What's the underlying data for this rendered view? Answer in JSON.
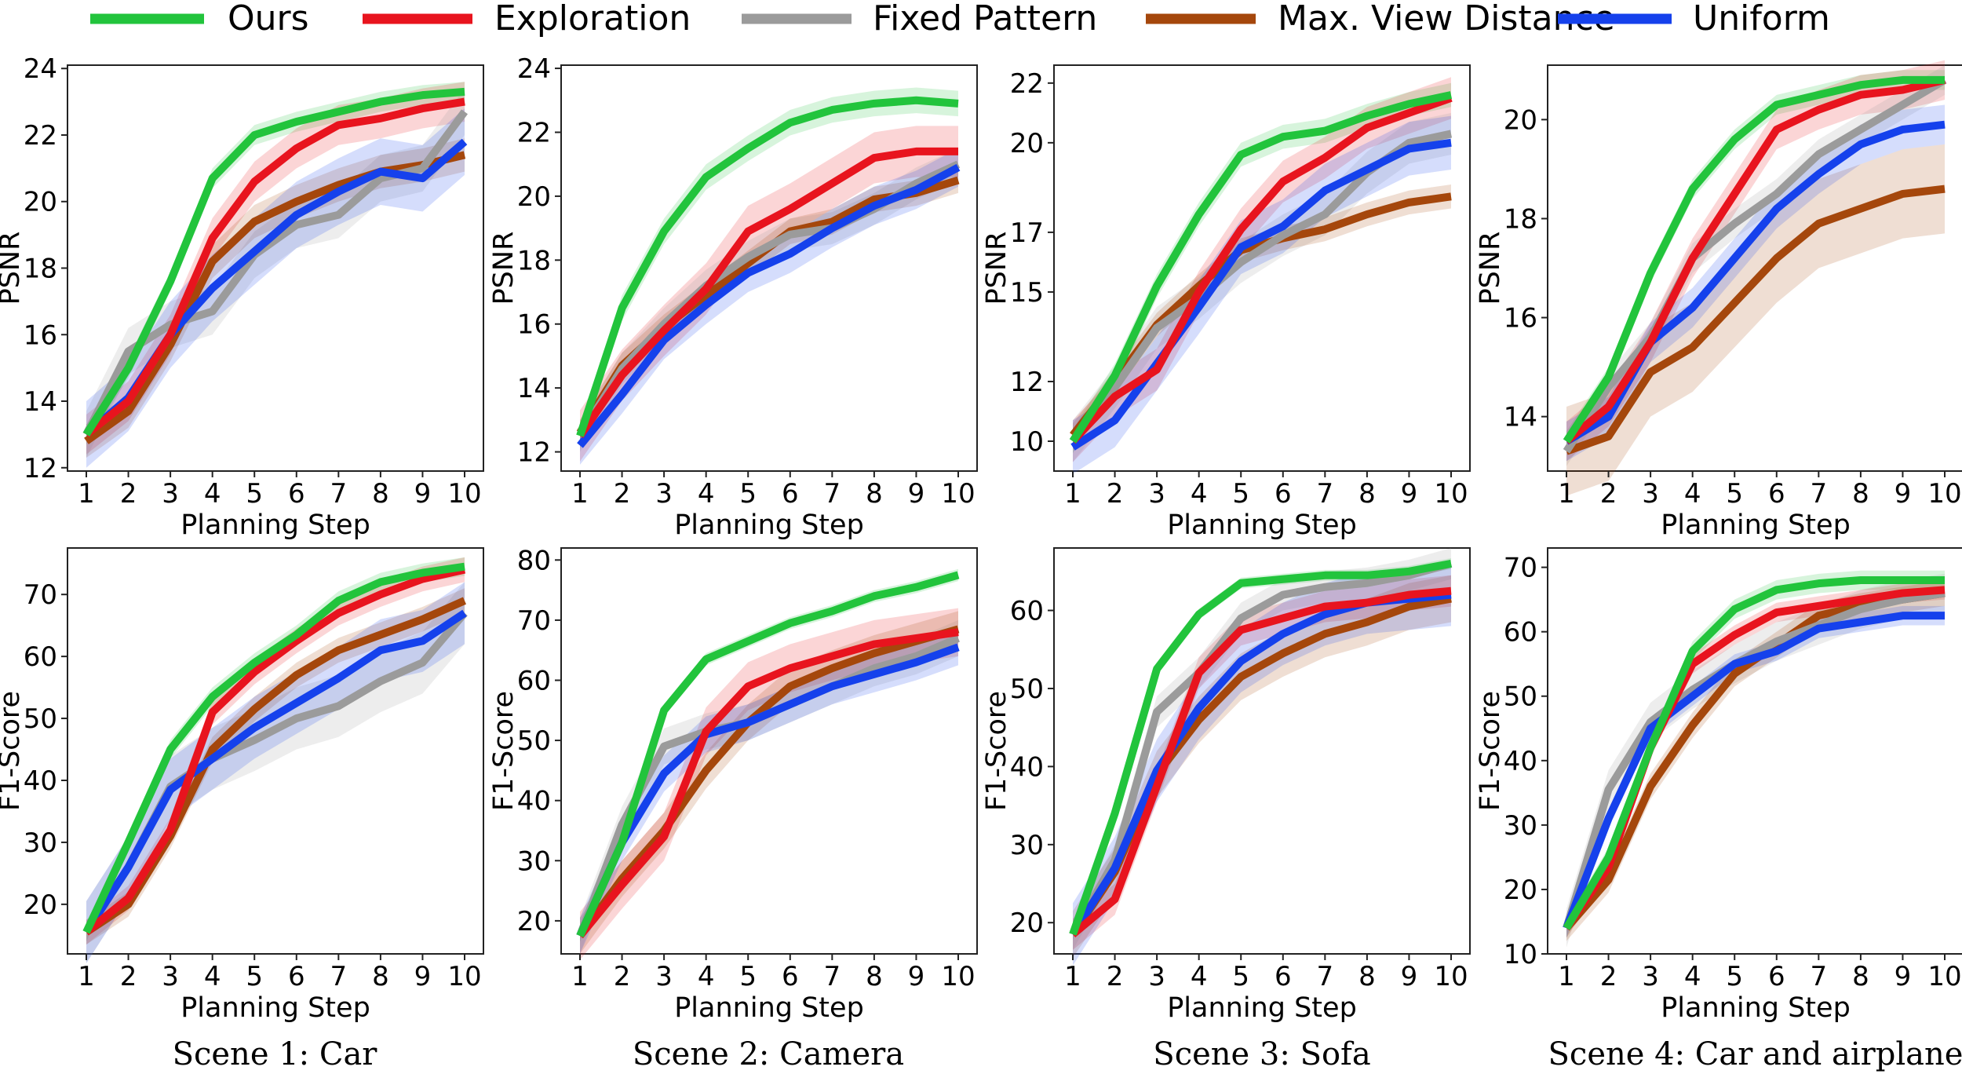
{
  "legend": [
    {
      "key": "ours",
      "label": "Ours",
      "color": "#22c43c"
    },
    {
      "key": "exploration",
      "label": "Exploration",
      "color": "#e8141e"
    },
    {
      "key": "fixed",
      "label": "Fixed Pattern",
      "color": "#9b9b9b"
    },
    {
      "key": "maxview",
      "label": "Max. View Distance",
      "color": "#a5470c"
    },
    {
      "key": "uniform",
      "label": "Uniform",
      "color": "#1541ec"
    }
  ],
  "captions": [
    "Scene 1: Car",
    "Scene 2: Camera",
    "Scene 3: Sofa",
    "Scene 4: Car and airplane"
  ],
  "chart_data": [
    {
      "id": "s1-psnr",
      "type": "line",
      "xlabel": "Planning Step",
      "ylabel": "PSNR",
      "ylim": [
        11.9,
        24.1
      ],
      "yticks": [
        12,
        14,
        16,
        18,
        20,
        22,
        24
      ],
      "x": [
        1,
        2,
        3,
        4,
        5,
        6,
        7,
        8,
        9,
        10
      ],
      "series": [
        {
          "key": "ours",
          "values": [
            13.0,
            15.0,
            17.6,
            20.7,
            22.0,
            22.4,
            22.7,
            23.0,
            23.2,
            23.3
          ],
          "band": 0.3
        },
        {
          "key": "exploration",
          "values": [
            13.0,
            14.0,
            16.0,
            18.9,
            20.6,
            21.6,
            22.3,
            22.5,
            22.8,
            23.0
          ],
          "band": 0.6
        },
        {
          "key": "fixed",
          "values": [
            13.0,
            15.5,
            16.3,
            16.7,
            18.4,
            19.3,
            19.6,
            20.7,
            21.0,
            22.7
          ],
          "band": 0.7
        },
        {
          "key": "maxview",
          "values": [
            12.8,
            13.7,
            15.7,
            18.2,
            19.4,
            20.0,
            20.5,
            20.9,
            21.1,
            21.4
          ],
          "band": 0.5
        },
        {
          "key": "uniform",
          "values": [
            13.0,
            14.1,
            16.0,
            17.4,
            18.5,
            19.6,
            20.3,
            20.9,
            20.7,
            21.8
          ],
          "band": 1.0
        }
      ]
    },
    {
      "id": "s2-psnr",
      "type": "line",
      "xlabel": "Planning Step",
      "ylabel": "PSNR",
      "ylim": [
        11.4,
        24.1
      ],
      "yticks": [
        12,
        14,
        16,
        18,
        20,
        22,
        24
      ],
      "x": [
        1,
        2,
        3,
        4,
        5,
        6,
        7,
        8,
        9,
        10
      ],
      "series": [
        {
          "key": "ours",
          "values": [
            12.5,
            16.5,
            18.9,
            20.6,
            21.5,
            22.3,
            22.7,
            22.9,
            23.0,
            22.9
          ],
          "band": 0.4
        },
        {
          "key": "exploration",
          "values": [
            12.5,
            14.4,
            15.8,
            17.1,
            18.9,
            19.6,
            20.4,
            21.2,
            21.4,
            21.4
          ],
          "band": 0.8
        },
        {
          "key": "fixed",
          "values": [
            12.5,
            14.6,
            16.0,
            17.2,
            18.1,
            18.8,
            19.0,
            19.6,
            20.4,
            21.0
          ],
          "band": 0.5
        },
        {
          "key": "maxview",
          "values": [
            12.6,
            14.7,
            15.9,
            16.9,
            17.9,
            18.9,
            19.2,
            19.9,
            20.1,
            20.5
          ],
          "band": 0.4
        },
        {
          "key": "uniform",
          "values": [
            12.2,
            13.8,
            15.5,
            16.6,
            17.6,
            18.2,
            19.0,
            19.7,
            20.2,
            20.9
          ],
          "band": 0.6
        }
      ]
    },
    {
      "id": "s3-psnr",
      "type": "line",
      "xlabel": "Planning Step",
      "ylabel": "PSNR",
      "ylim": [
        9.0,
        22.6
      ],
      "yticks": [
        10,
        12,
        15,
        17,
        20,
        22
      ],
      "yticklabels": [
        "10",
        "12",
        "15",
        "17",
        "20",
        "22"
      ],
      "x": [
        1,
        2,
        3,
        4,
        5,
        6,
        7,
        8,
        9,
        10
      ],
      "series": [
        {
          "key": "ours",
          "values": [
            10.0,
            12.2,
            15.2,
            17.6,
            19.6,
            20.2,
            20.4,
            20.9,
            21.3,
            21.6
          ],
          "band": 0.4
        },
        {
          "key": "exploration",
          "values": [
            10.0,
            11.5,
            12.4,
            15.0,
            17.1,
            18.7,
            19.5,
            20.5,
            21.0,
            21.5
          ],
          "band": 0.7
        },
        {
          "key": "fixed",
          "values": [
            10.0,
            11.8,
            13.8,
            14.8,
            16.0,
            16.9,
            17.6,
            19.0,
            20.0,
            20.3
          ],
          "band": 0.7
        },
        {
          "key": "maxview",
          "values": [
            10.2,
            12.0,
            13.9,
            15.2,
            16.4,
            16.8,
            17.1,
            17.6,
            18.0,
            18.2
          ],
          "band": 0.4
        },
        {
          "key": "uniform",
          "values": [
            9.8,
            10.7,
            12.6,
            14.5,
            16.5,
            17.2,
            18.4,
            19.1,
            19.8,
            20.0
          ],
          "band": 0.9
        }
      ]
    },
    {
      "id": "s4-psnr",
      "type": "line",
      "xlabel": "Planning Step",
      "ylabel": "PSNR",
      "ylim": [
        12.9,
        21.1
      ],
      "yticks": [
        14,
        16,
        18,
        20
      ],
      "x": [
        1,
        2,
        3,
        4,
        5,
        6,
        7,
        8,
        9,
        10
      ],
      "series": [
        {
          "key": "ours",
          "values": [
            13.5,
            14.8,
            16.9,
            18.6,
            19.6,
            20.3,
            20.5,
            20.7,
            20.8,
            20.8
          ],
          "band": 0.2
        },
        {
          "key": "exploration",
          "values": [
            13.5,
            14.2,
            15.5,
            17.2,
            18.5,
            19.8,
            20.2,
            20.5,
            20.6,
            20.8
          ],
          "band": 0.4
        },
        {
          "key": "fixed",
          "values": [
            13.3,
            14.6,
            15.6,
            17.2,
            17.9,
            18.5,
            19.3,
            19.8,
            20.3,
            20.8
          ],
          "band": 0.3
        },
        {
          "key": "maxview",
          "values": [
            13.3,
            13.6,
            14.9,
            15.4,
            16.3,
            17.2,
            17.9,
            18.2,
            18.5,
            18.6
          ],
          "band": 0.9
        },
        {
          "key": "uniform",
          "values": [
            13.5,
            14.0,
            15.5,
            16.2,
            17.2,
            18.2,
            18.9,
            19.5,
            19.8,
            19.9
          ],
          "band": 0.4
        }
      ]
    },
    {
      "id": "s1-f1",
      "type": "line",
      "xlabel": "Planning Step",
      "ylabel": "F1-Score",
      "ylim": [
        12,
        77.5
      ],
      "yticks": [
        20,
        30,
        40,
        50,
        60,
        70
      ],
      "x": [
        1,
        2,
        3,
        4,
        5,
        6,
        7,
        8,
        9,
        10
      ],
      "series": [
        {
          "key": "ours",
          "values": [
            15.5,
            30,
            45,
            53.5,
            59,
            63.5,
            69,
            72,
            73.5,
            74.5
          ],
          "band": 1.5
        },
        {
          "key": "exploration",
          "values": [
            15.5,
            21,
            32,
            51,
            57.5,
            62.5,
            67,
            70,
            72.5,
            74
          ],
          "band": 2.0
        },
        {
          "key": "fixed",
          "values": [
            15.5,
            26,
            39,
            43.5,
            46.5,
            50,
            52,
            56,
            59,
            67
          ],
          "band": 5.0
        },
        {
          "key": "maxview",
          "values": [
            15.5,
            20,
            31,
            45,
            51.5,
            57,
            61,
            63.5,
            66,
            69
          ],
          "band": 2.0
        },
        {
          "key": "uniform",
          "values": [
            15.5,
            26,
            38.5,
            43.5,
            48.5,
            52.5,
            56.5,
            61,
            62.5,
            67
          ],
          "band": 5.0
        }
      ]
    },
    {
      "id": "s2-f1",
      "type": "line",
      "xlabel": "Planning Step",
      "ylabel": "F1-Score",
      "ylim": [
        14.5,
        82
      ],
      "yticks": [
        20,
        30,
        40,
        50,
        60,
        70,
        80
      ],
      "x": [
        1,
        2,
        3,
        4,
        5,
        6,
        7,
        8,
        9,
        10
      ],
      "series": [
        {
          "key": "ours",
          "values": [
            17.5,
            33,
            55,
            63.5,
            66.5,
            69.5,
            71.5,
            74,
            75.5,
            77.5
          ],
          "band": 1.0
        },
        {
          "key": "exploration",
          "values": [
            17.5,
            26,
            34,
            51.5,
            59,
            62,
            64,
            66,
            67,
            68
          ],
          "band": 4.0
        },
        {
          "key": "fixed",
          "values": [
            17.5,
            36,
            49,
            51.5,
            53,
            56,
            59,
            62,
            64,
            67
          ],
          "band": 3.0
        },
        {
          "key": "maxview",
          "values": [
            17.5,
            27,
            35,
            45,
            53,
            59,
            62,
            64.5,
            66.5,
            68.5
          ],
          "band": 3.0
        },
        {
          "key": "uniform",
          "values": [
            17.5,
            33,
            44.5,
            51,
            53,
            56,
            59,
            61,
            63,
            65.5
          ],
          "band": 3.0
        }
      ]
    },
    {
      "id": "s3-f1",
      "type": "line",
      "xlabel": "Planning Step",
      "ylabel": "F1-Score",
      "ylim": [
        16,
        68
      ],
      "yticks": [
        20,
        30,
        40,
        50,
        60
      ],
      "x": [
        1,
        2,
        3,
        4,
        5,
        6,
        7,
        8,
        9,
        10
      ],
      "series": [
        {
          "key": "ours",
          "values": [
            18.5,
            34,
            52.5,
            59.5,
            63.5,
            64,
            64.5,
            64.5,
            65,
            66
          ],
          "band": 0.7
        },
        {
          "key": "exploration",
          "values": [
            18.5,
            23,
            37.5,
            52,
            57.5,
            59,
            60.5,
            61,
            62,
            62.5
          ],
          "band": 2.0
        },
        {
          "key": "fixed",
          "values": [
            18.5,
            28,
            47,
            52,
            59,
            62,
            63,
            63.5,
            64.5,
            66
          ],
          "band": 2.0
        },
        {
          "key": "maxview",
          "values": [
            18.5,
            26.5,
            39,
            46,
            51.5,
            54.5,
            57,
            58.5,
            60.5,
            61.5
          ],
          "band": 3.0
        },
        {
          "key": "uniform",
          "values": [
            18.5,
            27,
            39.5,
            47.5,
            53.5,
            57,
            59.5,
            61,
            61.5,
            62
          ],
          "band": 4.0
        }
      ]
    },
    {
      "id": "s4-f1",
      "type": "line",
      "xlabel": "Planning Step",
      "ylabel": "F1-Score",
      "ylim": [
        10,
        73
      ],
      "yticks": [
        10,
        20,
        30,
        40,
        50,
        60,
        70
      ],
      "x": [
        1,
        2,
        3,
        4,
        5,
        6,
        7,
        8,
        9,
        10
      ],
      "series": [
        {
          "key": "ours",
          "values": [
            14,
            25,
            42,
            57,
            63.5,
            66.5,
            67.5,
            68,
            68,
            68
          ],
          "band": 1.5
        },
        {
          "key": "exploration",
          "values": [
            14,
            23.5,
            42,
            55,
            59.5,
            63,
            64,
            65,
            66,
            66.5
          ],
          "band": 1.5
        },
        {
          "key": "fixed",
          "values": [
            14,
            35.5,
            46,
            51,
            55,
            58.5,
            61,
            63.5,
            65,
            66
          ],
          "band": 3.0
        },
        {
          "key": "maxview",
          "values": [
            14,
            21.5,
            36,
            45.5,
            53.5,
            58,
            62.5,
            64,
            65,
            66
          ],
          "band": 2.0
        },
        {
          "key": "uniform",
          "values": [
            14,
            31,
            45,
            50,
            55,
            57,
            60.5,
            61.5,
            62.5,
            62.5
          ],
          "band": 1.5
        }
      ]
    }
  ]
}
